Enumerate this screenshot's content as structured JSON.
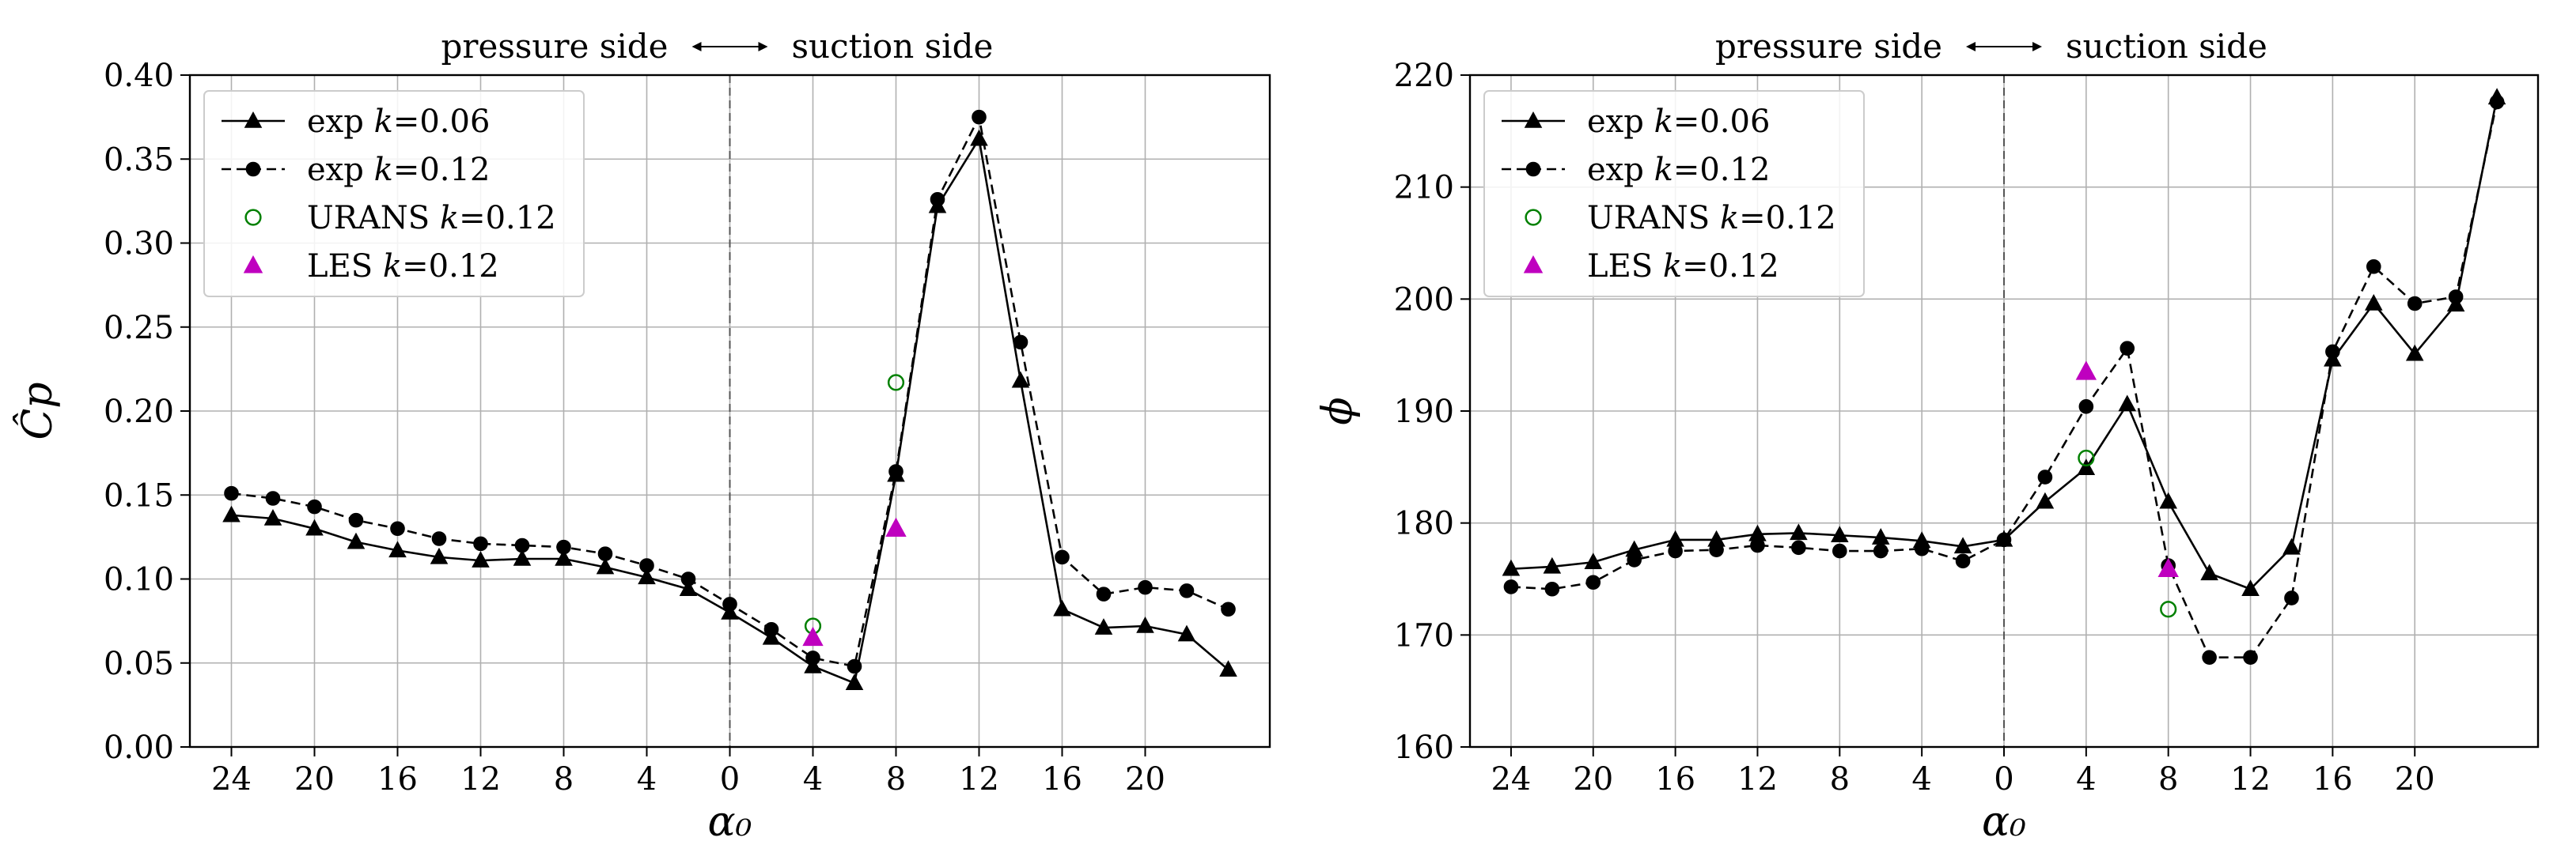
{
  "chart_data": [
    {
      "type": "line",
      "id": "left",
      "xlabel": "α₀",
      "ylabel": "Ĉp",
      "annotation": {
        "left": "pressure side",
        "arrow": "↔",
        "right": "suction side"
      },
      "xlim": [
        -26,
        26
      ],
      "ylim": [
        0.0,
        0.4
      ],
      "x_ticks": [
        -24,
        -20,
        -16,
        -12,
        -8,
        -4,
        0,
        4,
        8,
        12,
        16,
        20
      ],
      "x_tick_labels": [
        "24",
        "20",
        "16",
        "12",
        "8",
        "4",
        "0",
        "4",
        "8",
        "12",
        "16",
        "20"
      ],
      "y_ticks": [
        0.0,
        0.05,
        0.1,
        0.15,
        0.2,
        0.25,
        0.3,
        0.35,
        0.4
      ],
      "y_tick_labels": [
        "0.00",
        "0.05",
        "0.10",
        "0.15",
        "0.20",
        "0.25",
        "0.30",
        "0.35",
        "0.40"
      ],
      "grid": true,
      "legend_position": "top-left",
      "series": [
        {
          "name": "exp k=0.06",
          "label_prefix": "exp ",
          "label_k": "k",
          "label_value": "=0.06",
          "style": "solid",
          "marker": "triangle",
          "color": "#000000",
          "x": [
            -24,
            -22,
            -20,
            -18,
            -16,
            -14,
            -12,
            -10,
            -8,
            -6,
            -4,
            -2,
            0,
            2,
            4,
            6,
            8,
            10,
            12,
            14,
            16,
            18,
            20,
            22,
            24
          ],
          "y": [
            0.138,
            0.136,
            0.13,
            0.122,
            0.117,
            0.113,
            0.111,
            0.112,
            0.112,
            0.107,
            0.101,
            0.094,
            0.08,
            0.065,
            0.048,
            0.038,
            0.162,
            0.322,
            0.362,
            0.218,
            0.082,
            0.071,
            0.072,
            0.067,
            0.046
          ]
        },
        {
          "name": "exp k=0.12",
          "label_prefix": "exp ",
          "label_k": "k",
          "label_value": "=0.12",
          "style": "dashed",
          "marker": "circle",
          "color": "#000000",
          "x": [
            -24,
            -22,
            -20,
            -18,
            -16,
            -14,
            -12,
            -10,
            -8,
            -6,
            -4,
            -2,
            0,
            2,
            4,
            6,
            8,
            10,
            12,
            14,
            16,
            18,
            20,
            22,
            24
          ],
          "y": [
            0.151,
            0.148,
            0.143,
            0.135,
            0.13,
            0.124,
            0.121,
            0.12,
            0.119,
            0.115,
            0.108,
            0.1,
            0.085,
            0.07,
            0.053,
            0.048,
            0.164,
            0.326,
            0.375,
            0.241,
            0.113,
            0.091,
            0.095,
            0.093,
            0.082
          ]
        },
        {
          "name": "URANS k=0.12",
          "label_prefix": "URANS ",
          "label_k": "k",
          "label_value": "=0.12",
          "style": "none",
          "marker": "open-circle",
          "color": "#008000",
          "x": [
            4,
            8
          ],
          "y": [
            0.072,
            0.217
          ]
        },
        {
          "name": "LES k=0.12",
          "label_prefix": "LES ",
          "label_k": "k",
          "label_value": "=0.12",
          "style": "none",
          "marker": "triangle",
          "color": "#bf00bf",
          "x": [
            4,
            8
          ],
          "y": [
            0.065,
            0.13
          ]
        }
      ]
    },
    {
      "type": "line",
      "id": "right",
      "xlabel": "α₀",
      "ylabel": "ϕ",
      "annotation": {
        "left": "pressure side",
        "arrow": "↔",
        "right": "suction side"
      },
      "xlim": [
        -26,
        26
      ],
      "ylim": [
        160,
        220
      ],
      "x_ticks": [
        -24,
        -20,
        -16,
        -12,
        -8,
        -4,
        0,
        4,
        8,
        12,
        16,
        20
      ],
      "x_tick_labels": [
        "24",
        "20",
        "16",
        "12",
        "8",
        "4",
        "0",
        "4",
        "8",
        "12",
        "16",
        "20"
      ],
      "y_ticks": [
        160,
        170,
        180,
        190,
        200,
        210,
        220
      ],
      "y_tick_labels": [
        "160",
        "170",
        "180",
        "190",
        "200",
        "210",
        "220"
      ],
      "grid": true,
      "legend_position": "top-left",
      "series": [
        {
          "name": "exp k=0.06",
          "label_prefix": "exp ",
          "label_k": "k",
          "label_value": "=0.06",
          "style": "solid",
          "marker": "triangle",
          "color": "#000000",
          "x": [
            -24,
            -22,
            -20,
            -18,
            -16,
            -14,
            -12,
            -10,
            -8,
            -6,
            -4,
            -2,
            0,
            2,
            4,
            6,
            8,
            10,
            12,
            14,
            16,
            18,
            20,
            22,
            24
          ],
          "y": [
            175.9,
            176.1,
            176.5,
            177.6,
            178.5,
            178.5,
            179.0,
            179.1,
            178.9,
            178.7,
            178.4,
            177.9,
            178.5,
            181.9,
            184.9,
            190.6,
            181.9,
            175.5,
            174.1,
            177.8,
            194.6,
            199.6,
            195.1,
            199.5,
            218.0
          ]
        },
        {
          "name": "exp k=0.12",
          "label_prefix": "exp ",
          "label_k": "k",
          "label_value": "=0.12",
          "style": "dashed",
          "marker": "circle",
          "color": "#000000",
          "x": [
            -24,
            -22,
            -20,
            -18,
            -16,
            -14,
            -12,
            -10,
            -8,
            -6,
            -4,
            -2,
            0,
            2,
            4,
            6,
            8,
            10,
            12,
            14,
            16,
            18,
            20,
            22,
            24
          ],
          "y": [
            174.3,
            174.1,
            174.7,
            176.7,
            177.5,
            177.6,
            178.0,
            177.8,
            177.5,
            177.5,
            177.7,
            176.6,
            178.5,
            184.1,
            190.4,
            195.6,
            176.2,
            168.0,
            168.0,
            173.3,
            195.3,
            202.9,
            199.6,
            200.2,
            217.6
          ]
        },
        {
          "name": "URANS k=0.12",
          "label_prefix": "URANS ",
          "label_k": "k",
          "label_value": "=0.12",
          "style": "none",
          "marker": "open-circle",
          "color": "#008000",
          "x": [
            4,
            8
          ],
          "y": [
            185.8,
            172.3
          ]
        },
        {
          "name": "LES k=0.12",
          "label_prefix": "LES ",
          "label_k": "k",
          "label_value": "=0.12",
          "style": "none",
          "marker": "triangle",
          "color": "#bf00bf",
          "x": [
            4,
            8
          ],
          "y": [
            193.5,
            175.9
          ]
        }
      ]
    }
  ]
}
